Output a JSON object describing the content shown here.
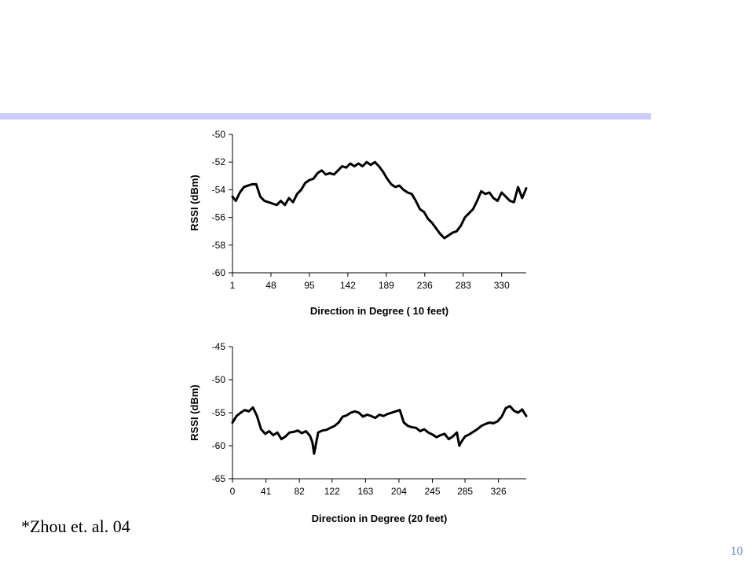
{
  "slide": {
    "footnote": "*Zhou et. al. 04",
    "page_number": "10",
    "accent_bar_color": "#ccccff",
    "page_number_color": "#5b7fc7"
  },
  "chart_data": [
    {
      "type": "line",
      "xlabel": "Direction in Degree ( 10 feet)",
      "ylabel": "RSSI (dBm)",
      "x_ticks": [
        "1",
        "48",
        "95",
        "142",
        "189",
        "236",
        "283",
        "330"
      ],
      "x_tick_values": [
        1,
        48,
        95,
        142,
        189,
        236,
        283,
        330
      ],
      "y_ticks": [
        -50,
        -52,
        -54,
        -56,
        -58,
        -60
      ],
      "xlim": [
        1,
        360
      ],
      "ylim": [
        -60,
        -50
      ],
      "grid": false,
      "series": [
        {
          "x": [
            1,
            5,
            10,
            15,
            20,
            25,
            30,
            35,
            40,
            45,
            50,
            55,
            60,
            65,
            70,
            75,
            80,
            85,
            90,
            95,
            100,
            105,
            110,
            115,
            120,
            125,
            130,
            135,
            140,
            145,
            150,
            155,
            160,
            165,
            170,
            175,
            180,
            185,
            190,
            195,
            200,
            205,
            210,
            215,
            220,
            225,
            230,
            235,
            240,
            245,
            250,
            255,
            260,
            265,
            270,
            275,
            280,
            285,
            290,
            295,
            300,
            305,
            310,
            315,
            320,
            325,
            330,
            335,
            340,
            345,
            350,
            355,
            360
          ],
          "values": [
            -54.5,
            -54.8,
            -54.2,
            -53.8,
            -53.7,
            -53.6,
            -53.6,
            -54.5,
            -54.8,
            -54.9,
            -55.0,
            -55.1,
            -54.8,
            -55.1,
            -54.6,
            -54.9,
            -54.3,
            -54.0,
            -53.5,
            -53.3,
            -53.2,
            -52.8,
            -52.6,
            -52.9,
            -52.8,
            -52.9,
            -52.6,
            -52.3,
            -52.4,
            -52.1,
            -52.3,
            -52.1,
            -52.3,
            -52.0,
            -52.2,
            -52.0,
            -52.3,
            -52.7,
            -53.2,
            -53.6,
            -53.8,
            -53.7,
            -54.0,
            -54.2,
            -54.3,
            -54.8,
            -55.4,
            -55.6,
            -56.1,
            -56.4,
            -56.8,
            -57.2,
            -57.5,
            -57.3,
            -57.1,
            -57.0,
            -56.6,
            -56.0,
            -55.7,
            -55.4,
            -54.8,
            -54.1,
            -54.3,
            -54.2,
            -54.6,
            -54.8,
            -54.2,
            -54.5,
            -54.8,
            -54.9,
            -53.8,
            -54.6,
            -53.9
          ]
        }
      ]
    },
    {
      "type": "line",
      "xlabel": "Direction in Degree (20 feet)",
      "ylabel": "RSSI (dBm)",
      "x_ticks": [
        "0",
        "41",
        "82",
        "122",
        "163",
        "204",
        "245",
        "285",
        "326"
      ],
      "x_tick_values": [
        0,
        41,
        82,
        122,
        163,
        204,
        245,
        285,
        326
      ],
      "y_ticks": [
        -45,
        -50,
        -55,
        -60,
        -65
      ],
      "xlim": [
        0,
        360
      ],
      "ylim": [
        -65,
        -45
      ],
      "grid": false,
      "series": [
        {
          "x": [
            0,
            5,
            10,
            15,
            20,
            25,
            30,
            35,
            40,
            45,
            50,
            55,
            60,
            65,
            70,
            75,
            80,
            85,
            90,
            95,
            98,
            100,
            105,
            110,
            115,
            120,
            125,
            130,
            135,
            140,
            145,
            150,
            155,
            160,
            165,
            170,
            175,
            180,
            185,
            190,
            195,
            200,
            205,
            210,
            215,
            220,
            225,
            230,
            235,
            240,
            245,
            250,
            255,
            260,
            265,
            270,
            275,
            278,
            280,
            285,
            290,
            295,
            300,
            305,
            310,
            315,
            320,
            325,
            330,
            335,
            340,
            345,
            350,
            355,
            360
          ],
          "values": [
            -56.5,
            -55.5,
            -55.0,
            -54.6,
            -54.8,
            -54.2,
            -55.5,
            -57.5,
            -58.2,
            -57.8,
            -58.4,
            -58.0,
            -59.0,
            -58.6,
            -58.0,
            -57.9,
            -57.7,
            -58.1,
            -57.8,
            -58.5,
            -59.5,
            -61.2,
            -58.0,
            -57.7,
            -57.6,
            -57.3,
            -57.0,
            -56.5,
            -55.6,
            -55.4,
            -55.0,
            -54.8,
            -55.0,
            -55.6,
            -55.3,
            -55.5,
            -55.8,
            -55.3,
            -55.5,
            -55.2,
            -55.0,
            -54.8,
            -54.6,
            -56.5,
            -57.0,
            -57.2,
            -57.3,
            -57.8,
            -57.5,
            -58.0,
            -58.3,
            -58.7,
            -58.4,
            -58.2,
            -59.0,
            -58.6,
            -58.0,
            -60.0,
            -59.5,
            -58.6,
            -58.3,
            -57.9,
            -57.5,
            -57.0,
            -56.7,
            -56.5,
            -56.6,
            -56.3,
            -55.6,
            -54.3,
            -54.0,
            -54.7,
            -55.0,
            -54.5,
            -55.5
          ]
        }
      ]
    }
  ]
}
